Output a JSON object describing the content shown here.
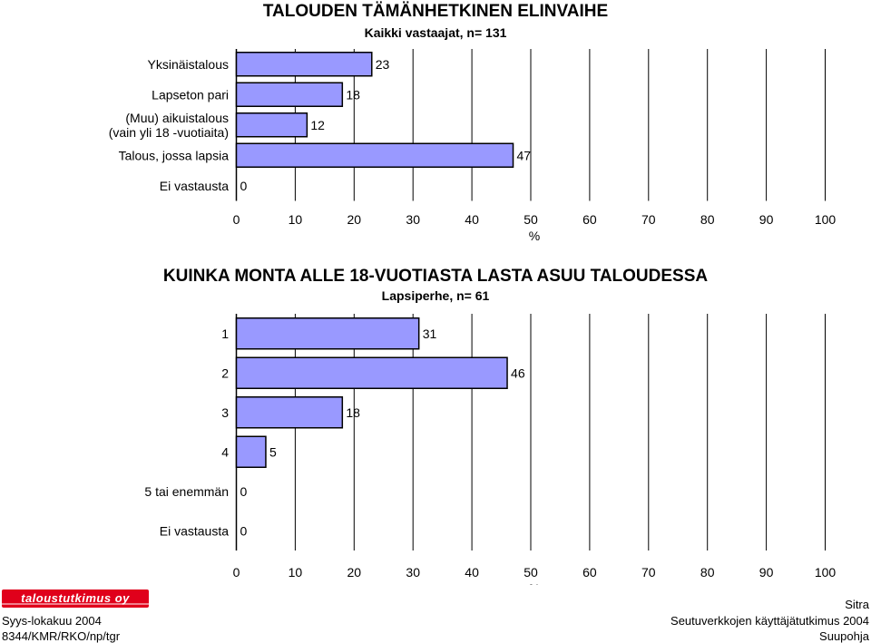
{
  "chart_data": [
    {
      "type": "bar",
      "orientation": "horizontal",
      "title": "TALOUDEN TÄMÄNHETKINEN ELINVAIHE",
      "subtitle": "Kaikki vastaajat, n= 131",
      "categories": [
        [
          "Yksinäistalous"
        ],
        [
          "Lapseton pari"
        ],
        [
          "(Muu) aikuistalous",
          "(vain yli 18 -vuotiaita)"
        ],
        [
          "Talous, jossa lapsia"
        ],
        [
          "Ei vastausta"
        ]
      ],
      "values": [
        23,
        18,
        12,
        47,
        0
      ],
      "xlabel": "%",
      "ylabel": "",
      "xlim": [
        0,
        100
      ],
      "xticks": [
        0,
        10,
        20,
        30,
        40,
        50,
        60,
        70,
        80,
        90,
        100
      ],
      "grid": "vertical",
      "bar_color": "#9999ff"
    },
    {
      "type": "bar",
      "orientation": "horizontal",
      "title": "KUINKA MONTA ALLE 18-VUOTIASTA LASTA ASUU TALOUDESSA",
      "subtitle": "Lapsiperhe, n= 61",
      "categories": [
        [
          "1"
        ],
        [
          "2"
        ],
        [
          "3"
        ],
        [
          "4"
        ],
        [
          "5 tai enemmän"
        ],
        [
          "Ei vastausta"
        ]
      ],
      "values": [
        31,
        46,
        18,
        5,
        0,
        0
      ],
      "xlabel": "%",
      "ylabel": "",
      "xlim": [
        0,
        100
      ],
      "xticks": [
        0,
        10,
        20,
        30,
        40,
        50,
        60,
        70,
        80,
        90,
        100
      ],
      "grid": "vertical",
      "bar_color": "#9999ff"
    }
  ],
  "footer": {
    "logo_text": "taloustutkimus oy",
    "logo_color": "#e0001b",
    "date": "Syys-lokakuu 2004",
    "code": "8344/KMR/RKO/np/tgr",
    "right_1": "Sitra",
    "right_2": "Seutuverkkojen käyttäjätutkimus 2004",
    "right_3": "Suupohja"
  }
}
